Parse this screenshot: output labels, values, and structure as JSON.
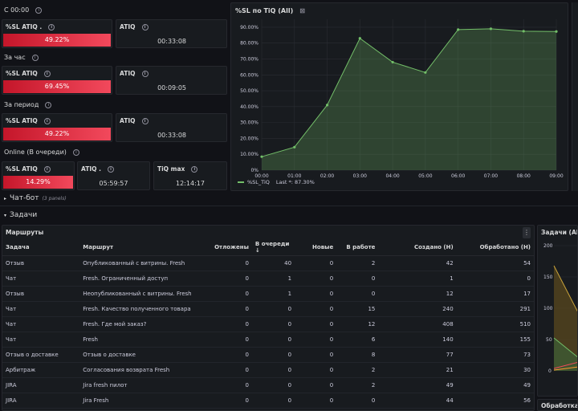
{
  "sections": {
    "since_midnight": "С 00:00",
    "last_hour": "За час",
    "period": "За период",
    "online": "Online (В очереди)"
  },
  "stats": {
    "r1_sl_title": "%SL ATIQ .",
    "r1_sl_value": "49.22%",
    "r1_atiq_title": "ATIQ",
    "r1_atiq_value": "00:33:08",
    "r2_sl_title": "%SL ATIQ",
    "r2_sl_value": "69.45%",
    "r2_atiq_title": "ATIQ",
    "r2_atiq_value": "00:09:05",
    "r3_sl_title": "%SL ATIQ",
    "r3_sl_value": "49.22%",
    "r3_atiq_title": "ATIQ",
    "r3_atiq_value": "00:33:08",
    "r4_sl_title": "%SL ATIQ",
    "r4_sl_value": "14.29%",
    "r4_atiq_title": "ATIQ .",
    "r4_atiq_value": "05:59:57",
    "r4_tiq_title": "TiQ max",
    "r4_tiq_value": "12:14:17"
  },
  "chart_panel": {
    "title": "%SL по TiQ (All)",
    "legend_label": "%SL_TiQ",
    "legend_last": "Last *: 87.30%"
  },
  "chart_data": {
    "type": "area",
    "x": [
      "00:00",
      "01:00",
      "02:00",
      "03:00",
      "04:00",
      "05:00",
      "06:00",
      "07:00",
      "08:00",
      "09:00"
    ],
    "series": [
      {
        "name": "%SL_TiQ",
        "values": [
          8.5,
          14.5,
          41,
          83,
          68,
          61.5,
          88.5,
          89,
          87.5,
          87.3
        ]
      }
    ],
    "y_ticks": [
      "0%",
      "10.00%",
      "20.00%",
      "30.00%",
      "40.00%",
      "50.00%",
      "60.00%",
      "70.00%",
      "80.00%",
      "90.00%"
    ],
    "ylim": [
      0,
      95
    ],
    "grid": true,
    "color": "#73bf69"
  },
  "rows": {
    "chatbot": "Чат-бот",
    "chatbot_hint": "(3 panels)",
    "tasks": "Задачи"
  },
  "routes": {
    "panel_title": "Маршруты",
    "headers": [
      "Задача",
      "Маршрут",
      "Отложены",
      "В очереди ↓",
      "Новые",
      "В работе",
      "Создано (Н)",
      "Обработано (Н)"
    ],
    "rows": [
      [
        "Отзыв",
        "Опубликованный с витрины. Fresh",
        "0",
        "40",
        "0",
        "2",
        "42",
        "54"
      ],
      [
        "Чат",
        "Fresh. Ограниченный доступ",
        "0",
        "1",
        "0",
        "0",
        "1",
        "0"
      ],
      [
        "Отзыв",
        "Неопубликованный с витрины. Fresh",
        "0",
        "1",
        "0",
        "0",
        "12",
        "17"
      ],
      [
        "Чат",
        "Fresh. Качество полученного товара",
        "0",
        "0",
        "0",
        "15",
        "240",
        "291"
      ],
      [
        "Чат",
        "Fresh. Где мой заказ?",
        "0",
        "0",
        "0",
        "12",
        "408",
        "510"
      ],
      [
        "Чат",
        "Fresh",
        "0",
        "0",
        "0",
        "6",
        "140",
        "155"
      ],
      [
        "Отзыв о доставке",
        "Отзыв о доставке",
        "0",
        "0",
        "0",
        "8",
        "77",
        "73"
      ],
      [
        "Арбитраж",
        "Согласования возврата Fresh",
        "0",
        "0",
        "0",
        "2",
        "21",
        "30"
      ],
      [
        "JIRA",
        "Jira fresh пилот",
        "0",
        "0",
        "0",
        "2",
        "49",
        "49"
      ],
      [
        "JIRA",
        "Jira Fresh",
        "0",
        "0",
        "0",
        "0",
        "44",
        "56"
      ]
    ]
  },
  "right_panel": {
    "title": "Задачи (All)",
    "tick_200": "200",
    "tick_150": "150",
    "tick_100": "100",
    "tick_50": "50",
    "tick_0": "0",
    "bottom_title": "Обработка ч"
  }
}
